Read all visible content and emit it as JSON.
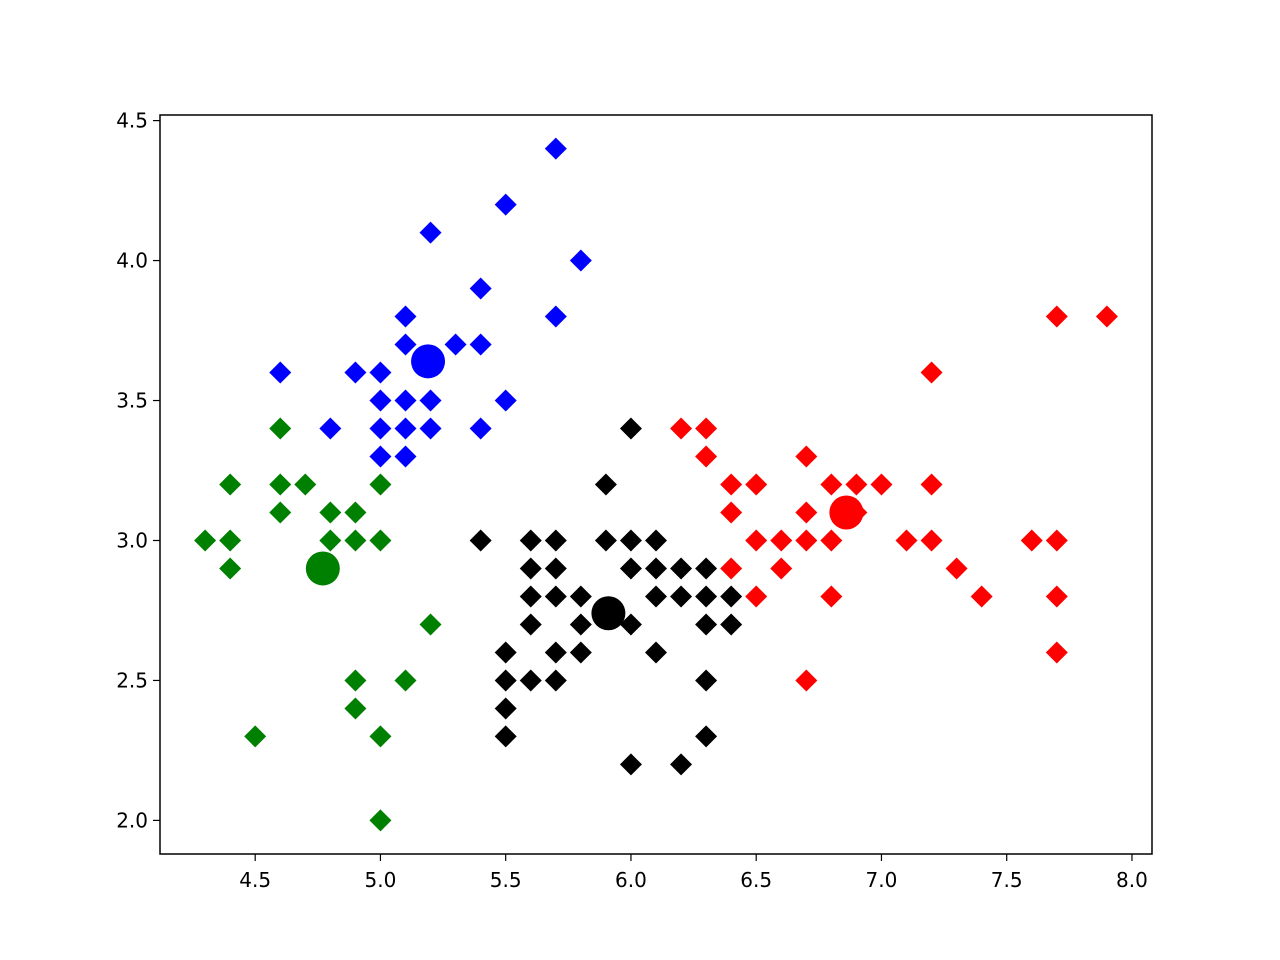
{
  "chart_data": {
    "type": "scatter",
    "xlim": [
      4.12,
      8.08
    ],
    "ylim": [
      1.88,
      4.52
    ],
    "xticks": [
      4.5,
      {
        "value": 5,
        "label": "5.0"
      },
      5.5,
      {
        "value": 6,
        "label": "6.0"
      },
      6.5,
      {
        "value": 7,
        "label": "7.0"
      },
      7.5,
      {
        "value": 8,
        "label": "8.0"
      }
    ],
    "yticks": [
      {
        "value": 2,
        "label": "2.0"
      },
      2.5,
      {
        "value": 3,
        "label": "3.0"
      },
      3.5,
      {
        "value": 4,
        "label": "4.0"
      },
      4.5
    ],
    "grid": false,
    "series": [
      {
        "color": "#0000ff",
        "marker": "diamond",
        "x": [
          5.7,
          5.5,
          5.2,
          5.8,
          5.4,
          5.7,
          5.1,
          5.1,
          5.3,
          5.4,
          4.6,
          4.9,
          5.0,
          5.0,
          5.1,
          5.2,
          5.5,
          4.8,
          5.0,
          5.1,
          5.2,
          5.4,
          5.0,
          5.1
        ],
        "y": [
          4.4,
          4.2,
          4.1,
          4.0,
          3.9,
          3.8,
          3.8,
          3.7,
          3.7,
          3.7,
          3.6,
          3.6,
          3.6,
          3.5,
          3.5,
          3.5,
          3.5,
          3.4,
          3.4,
          3.4,
          3.4,
          3.4,
          3.3,
          3.3
        ]
      },
      {
        "color": "#008000",
        "marker": "diamond",
        "x": [
          4.6,
          4.4,
          4.6,
          4.7,
          5.0,
          4.6,
          4.8,
          4.9,
          4.3,
          4.4,
          4.8,
          4.9,
          5.0,
          4.4,
          5.2,
          4.9,
          5.1,
          4.9,
          4.5,
          5.0,
          5.0
        ],
        "y": [
          3.4,
          3.2,
          3.2,
          3.2,
          3.2,
          3.1,
          3.1,
          3.1,
          3.0,
          3.0,
          3.0,
          3.0,
          3.0,
          2.9,
          2.7,
          2.5,
          2.5,
          2.4,
          2.3,
          2.3,
          2.0
        ]
      },
      {
        "color": "#000000",
        "marker": "diamond",
        "x": [
          6.0,
          5.9,
          5.4,
          5.6,
          5.7,
          5.9,
          6.0,
          6.1,
          5.6,
          5.7,
          6.0,
          6.1,
          6.2,
          6.3,
          5.6,
          5.7,
          5.8,
          6.1,
          6.2,
          6.3,
          6.4,
          5.6,
          5.8,
          6.0,
          6.3,
          6.4,
          5.7,
          5.8,
          6.1,
          5.5,
          5.5,
          5.6,
          5.7,
          6.3,
          5.5,
          5.5,
          6.3,
          6.0,
          6.2
        ],
        "y": [
          3.4,
          3.2,
          3.0,
          3.0,
          3.0,
          3.0,
          3.0,
          3.0,
          2.9,
          2.9,
          2.9,
          2.9,
          2.9,
          2.9,
          2.8,
          2.8,
          2.8,
          2.8,
          2.8,
          2.8,
          2.8,
          2.7,
          2.7,
          2.7,
          2.7,
          2.7,
          2.6,
          2.6,
          2.6,
          2.6,
          2.5,
          2.5,
          2.5,
          2.5,
          2.4,
          2.3,
          2.3,
          2.2,
          2.2
        ]
      },
      {
        "color": "#ff0000",
        "marker": "diamond",
        "x": [
          7.7,
          7.9,
          7.2,
          6.2,
          6.3,
          6.3,
          6.7,
          6.4,
          6.5,
          6.8,
          6.9,
          7.0,
          7.2,
          6.4,
          6.7,
          6.9,
          6.5,
          6.6,
          6.7,
          6.8,
          7.1,
          7.2,
          7.6,
          7.7,
          6.4,
          6.6,
          7.3,
          6.5,
          6.8,
          7.4,
          7.7,
          7.7,
          6.7
        ],
        "y": [
          3.8,
          3.8,
          3.6,
          3.4,
          3.4,
          3.3,
          3.3,
          3.2,
          3.2,
          3.2,
          3.2,
          3.2,
          3.2,
          3.1,
          3.1,
          3.1,
          3.0,
          3.0,
          3.0,
          3.0,
          3.0,
          3.0,
          3.0,
          3.0,
          2.9,
          2.9,
          2.9,
          2.8,
          2.8,
          2.8,
          2.8,
          2.6,
          2.5
        ]
      },
      {
        "color": "#0000ff",
        "marker": "circle",
        "x": [
          5.19
        ],
        "y": [
          3.64
        ]
      },
      {
        "color": "#008000",
        "marker": "circle",
        "x": [
          4.77
        ],
        "y": [
          2.9
        ]
      },
      {
        "color": "#000000",
        "marker": "circle",
        "x": [
          5.91
        ],
        "y": [
          2.74
        ]
      },
      {
        "color": "#ff0000",
        "marker": "circle",
        "x": [
          6.86
        ],
        "y": [
          3.1
        ]
      }
    ]
  }
}
